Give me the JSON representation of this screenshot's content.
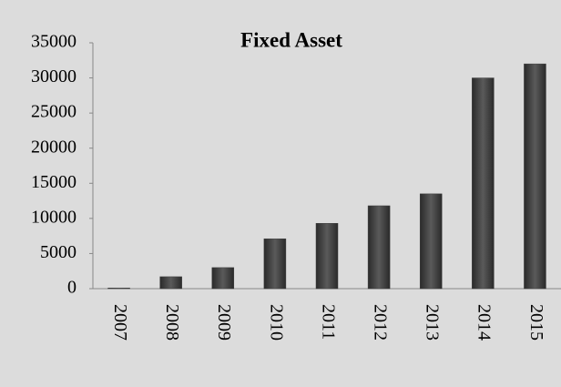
{
  "chart_data": {
    "type": "bar",
    "title": "Fixed Asset",
    "categories": [
      "2007",
      "2008",
      "2009",
      "2010",
      "2011",
      "2012",
      "2013",
      "2014",
      "2015"
    ],
    "values": [
      100,
      1700,
      3000,
      7100,
      9300,
      11800,
      13500,
      30000,
      32000
    ],
    "color": "#404040",
    "ylim": [
      0,
      35000
    ],
    "yticks": [
      0,
      5000,
      10000,
      15000,
      20000,
      25000,
      30000,
      35000
    ],
    "grid": false
  }
}
